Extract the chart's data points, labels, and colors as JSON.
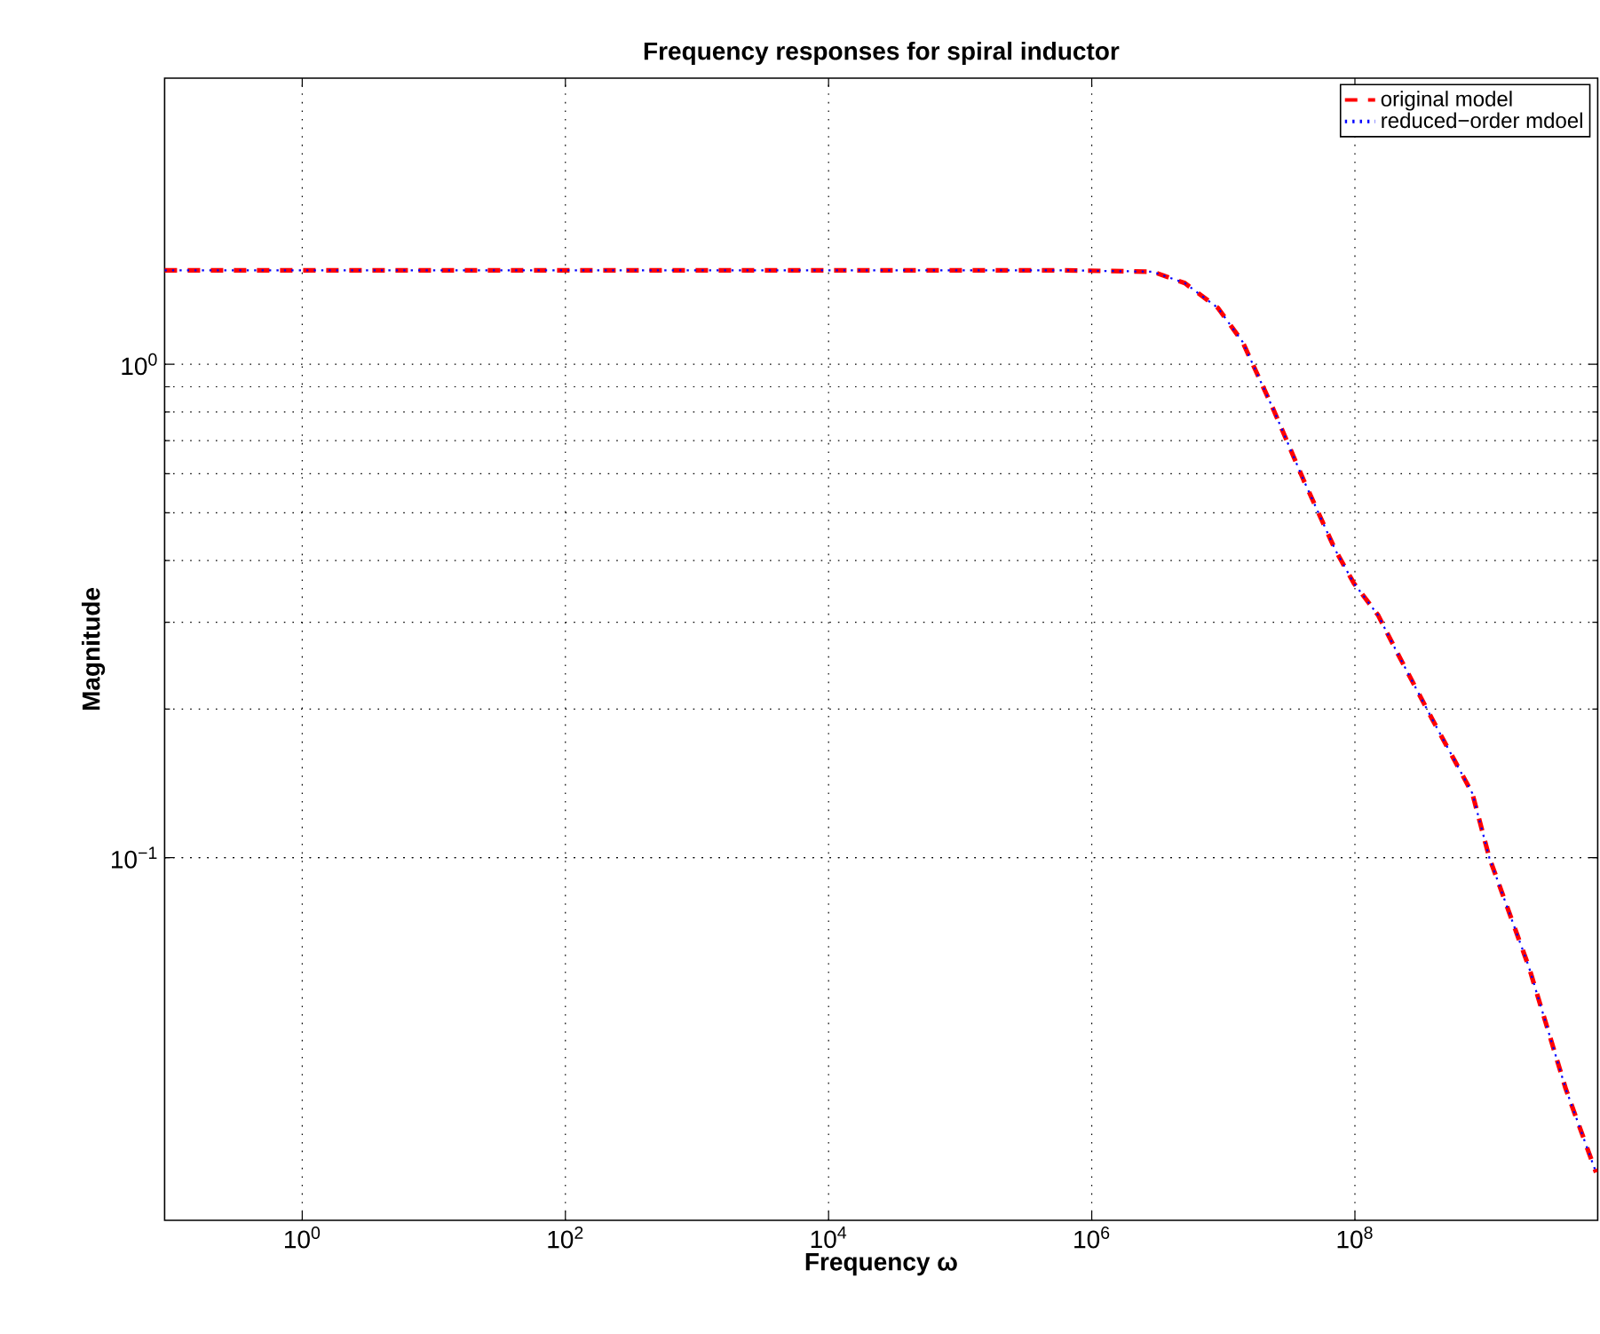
{
  "chart_data": {
    "type": "line",
    "title": "Frequency responses for spiral inductor",
    "xlabel": "Frequency ω",
    "ylabel": "Magnitude",
    "x": [
      0.09,
      620000,
      2900000,
      5100000,
      9100000,
      14000000,
      24000000,
      41000000,
      71000000,
      98000000,
      150000000,
      210000000,
      390000000,
      780000000,
      1050000000,
      2100000000,
      4000000000,
      6800000000
    ],
    "series": [
      {
        "name": "original model",
        "color": "#ff0000",
        "line_style": "dashed",
        "values": [
          1.55,
          1.55,
          1.54,
          1.46,
          1.3,
          1.11,
          0.81,
          0.58,
          0.42,
          0.36,
          0.31,
          0.26,
          0.19,
          0.135,
          0.1,
          0.06,
          0.034,
          0.023
        ]
      },
      {
        "name": "reduced−order mdoel",
        "color": "#0000ff",
        "line_style": "dotted",
        "values": [
          1.55,
          1.55,
          1.54,
          1.46,
          1.3,
          1.11,
          0.81,
          0.58,
          0.42,
          0.36,
          0.31,
          0.26,
          0.19,
          0.135,
          0.1,
          0.06,
          0.034,
          0.023
        ]
      }
    ],
    "log": "xy",
    "xlim": [
      0.09,
      7000000000
    ],
    "ylim": [
      0.0184,
      3.8
    ],
    "xticks": [
      {
        "value": 1,
        "label": "10$^{0}$"
      },
      {
        "value": 100,
        "label": "10$^{2}$"
      },
      {
        "value": 10000,
        "label": "10$^{4}$"
      },
      {
        "value": 1000000,
        "label": "10$^{6}$"
      },
      {
        "value": 100000000,
        "label": "10$^{8}$"
      }
    ],
    "yticks": [
      {
        "value": 0.1,
        "label": "10$^{−1}$"
      },
      {
        "value": 1,
        "label": "10$^{0}$"
      }
    ],
    "grid": true,
    "legend": "top right",
    "marker": "none"
  }
}
